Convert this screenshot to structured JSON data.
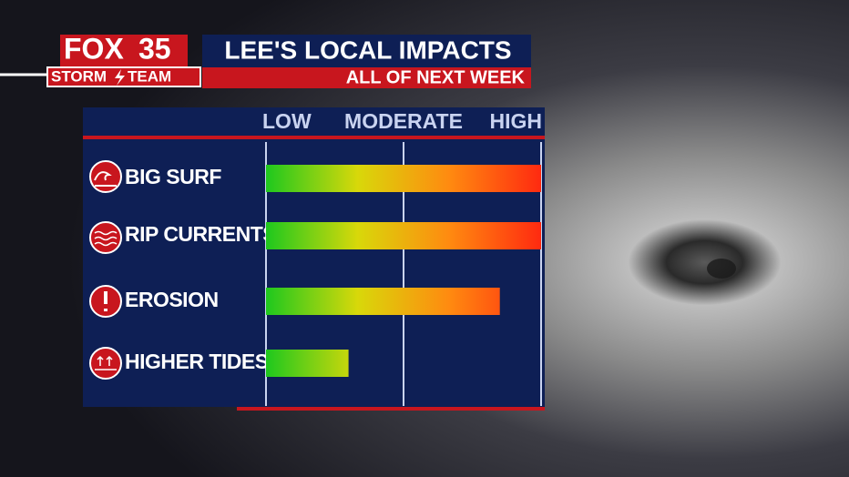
{
  "branding": {
    "station": [
      "FOX",
      "35"
    ],
    "team": [
      "STORM",
      "TEAM"
    ]
  },
  "chart_data": {
    "type": "bar",
    "orientation": "horizontal",
    "title": "LEE'S LOCAL IMPACTS",
    "subtitle": "ALL OF NEXT WEEK",
    "categories": [
      "BIG SURF",
      "RIP CURRENTS",
      "EROSION",
      "HIGHER TIDES"
    ],
    "values": [
      2.0,
      2.0,
      1.7,
      0.6
    ],
    "xlim": [
      0,
      2
    ],
    "xticks": [
      {
        "value": 0,
        "label": "LOW"
      },
      {
        "value": 1,
        "label": "MODERATE"
      },
      {
        "value": 2,
        "label": "HIGH"
      }
    ],
    "grid": true,
    "colors": [
      "#1ec81e",
      "#d8d80a",
      "#ff8a10",
      "#ff2a10"
    ]
  }
}
